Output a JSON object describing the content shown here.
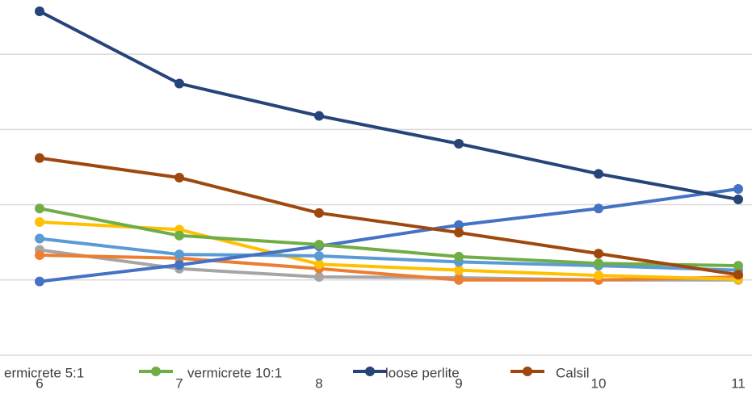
{
  "chart_data": {
    "type": "line",
    "categories": [
      "6",
      "7",
      "8",
      "9",
      "10",
      "11"
    ],
    "ylim": [
      0,
      4.72
    ],
    "yticks": [
      0,
      1,
      2,
      3,
      4
    ],
    "grid": true,
    "series": [
      {
        "name": "ermicrete 5:1",
        "color": "#a5a5a5",
        "values": [
          1.4,
          1.15,
          1.04,
          1.03,
          1.0,
          1.0
        ]
      },
      {
        "color": "#ed7d31",
        "values": [
          1.33,
          1.29,
          1.15,
          1.0,
          1.0,
          1.04
        ]
      },
      {
        "color": "#ffc000",
        "values": [
          1.77,
          1.67,
          1.21,
          1.13,
          1.06,
          1.01
        ]
      },
      {
        "color": "#5b9bd5",
        "values": [
          1.55,
          1.34,
          1.32,
          1.24,
          1.19,
          1.13
        ]
      },
      {
        "color": "#4472c4",
        "values": [
          0.98,
          1.2,
          1.45,
          1.73,
          1.95,
          2.21
        ]
      },
      {
        "name": "vermicrete 10:1",
        "color": "#70ad47",
        "values": [
          1.95,
          1.59,
          1.47,
          1.31,
          1.22,
          1.19
        ]
      },
      {
        "name": "loose perlite",
        "color": "#264478",
        "values": [
          4.57,
          3.61,
          3.18,
          2.81,
          2.41,
          2.07
        ]
      },
      {
        "name": "Calsil",
        "color": "#9e480e",
        "values": [
          2.62,
          2.36,
          1.89,
          1.63,
          1.35,
          1.07
        ]
      }
    ]
  }
}
